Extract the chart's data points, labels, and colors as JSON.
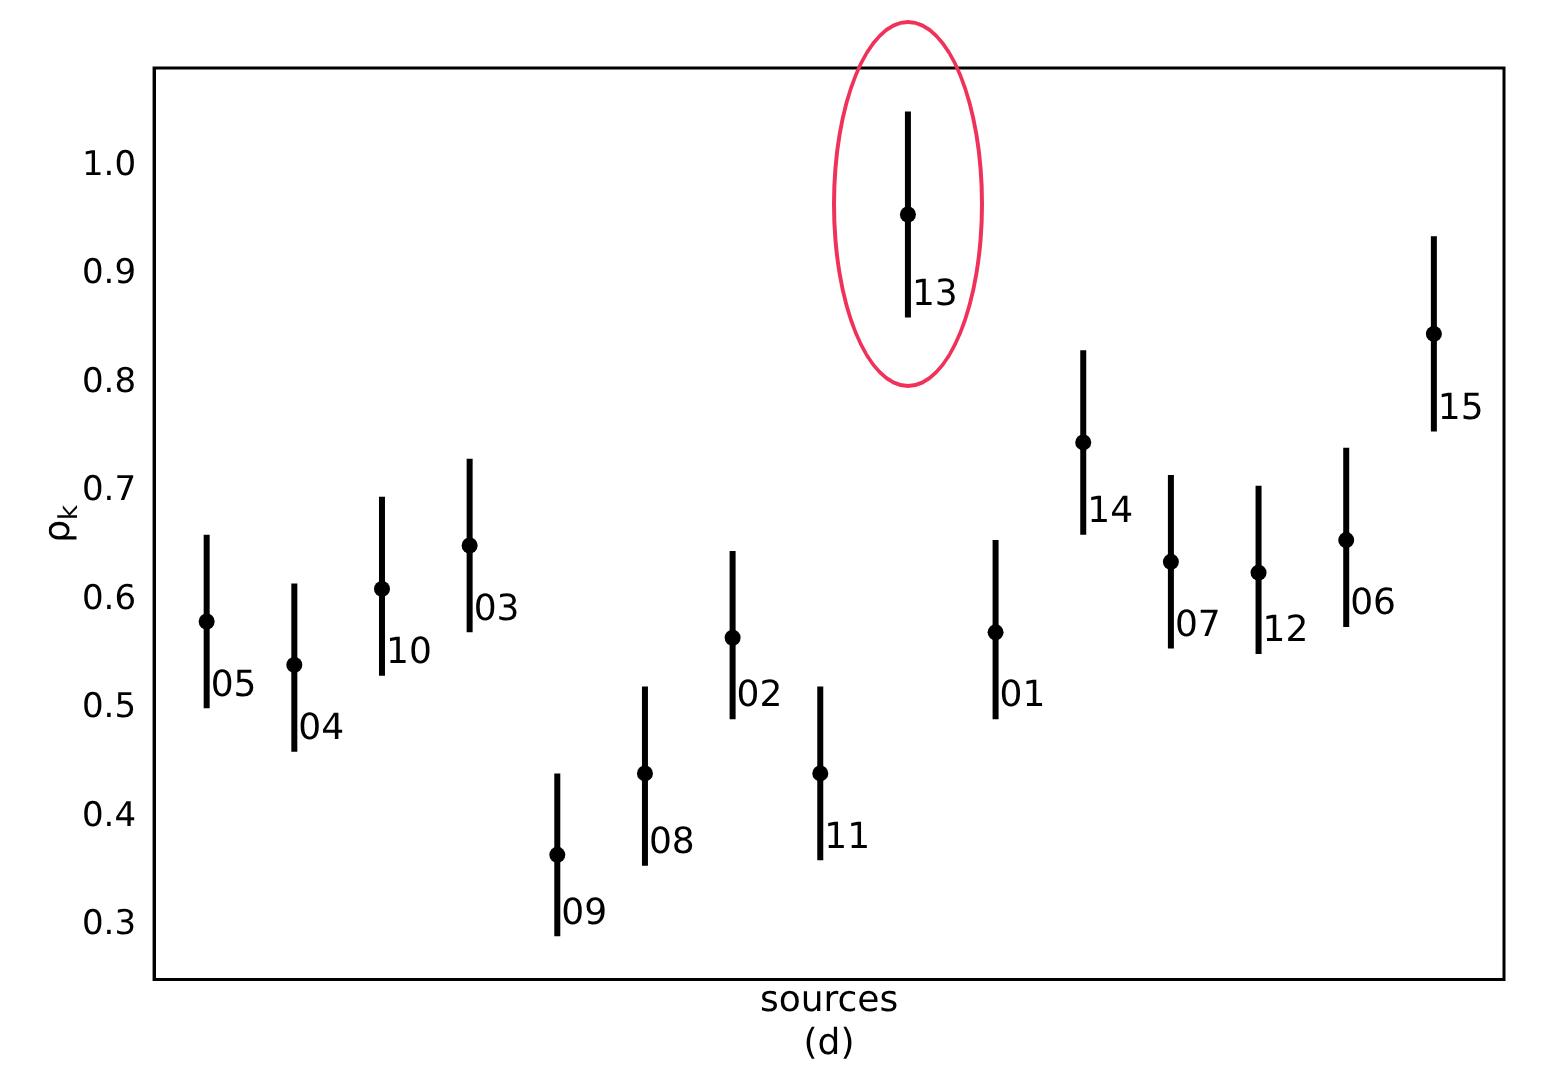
{
  "chart_data": {
    "type": "scatter",
    "xlabel": "sources\n(d)",
    "ylabel": "ρ$_{k}$",
    "categories": [
      "05",
      "04",
      "10",
      "03",
      "09",
      "08",
      "02",
      "11",
      "13",
      "01",
      "14",
      "07",
      "12",
      "06",
      "15"
    ],
    "series": [
      {
        "color": "#000000",
        "values": [
          0.58,
          0.54,
          0.61,
          0.65,
          0.365,
          0.44,
          0.565,
          0.44,
          0.955,
          0.57,
          0.745,
          0.635,
          0.625,
          0.655,
          0.845
        ],
        "errors": [
          [
            0.5,
            0.66
          ],
          [
            0.46,
            0.615
          ],
          [
            0.53,
            0.695
          ],
          [
            0.57,
            0.73
          ],
          [
            0.29,
            0.44
          ],
          [
            0.355,
            0.52
          ],
          [
            0.49,
            0.645
          ],
          [
            0.36,
            0.52
          ],
          [
            0.86,
            1.05
          ],
          [
            0.49,
            0.655
          ],
          [
            0.66,
            0.83
          ],
          [
            0.555,
            0.715
          ],
          [
            0.55,
            0.705
          ],
          [
            0.575,
            0.74
          ],
          [
            0.755,
            0.935
          ]
        ]
      }
    ],
    "ylim": [
      0.25,
      1.09
    ],
    "yticks": [
      0.3,
      0.4,
      0.5,
      0.6,
      0.7,
      0.8,
      0.9,
      {
        "value": 1.0,
        "label": "1.0"
      }
    ],
    "tick_labels": "y",
    "grid": false,
    "legend": false,
    "marker": "circle"
  }
}
